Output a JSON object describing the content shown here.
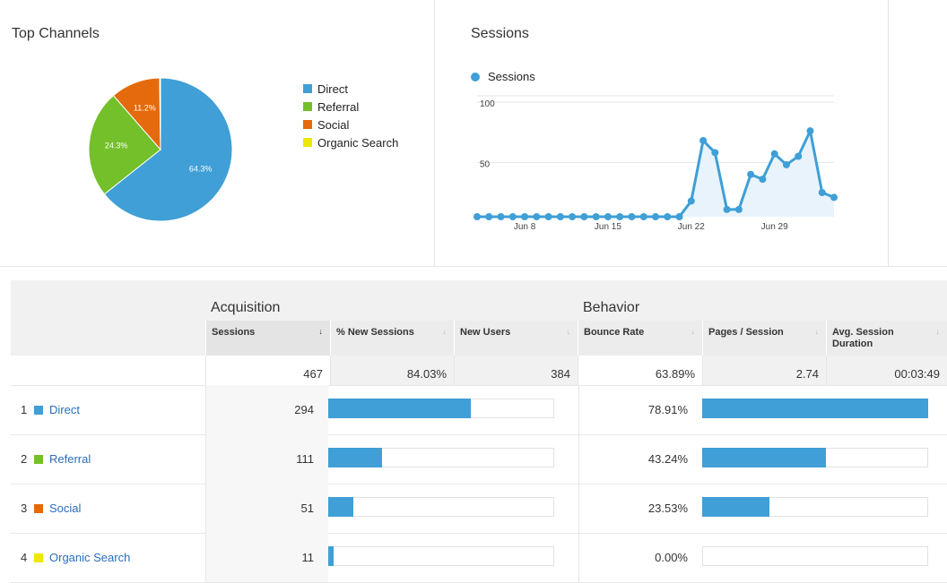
{
  "top_channels": {
    "title": "Top Channels",
    "legend": [
      {
        "label": "Direct",
        "color": "#3f9fd6"
      },
      {
        "label": "Referral",
        "color": "#73c02a"
      },
      {
        "label": "Social",
        "color": "#e46a0b"
      },
      {
        "label": "Organic Search",
        "color": "#ede800"
      }
    ],
    "chart_data": {
      "type": "pie",
      "slices": [
        {
          "label": "Direct",
          "value": 64.3,
          "display": "64.3%",
          "color": "#3f9fd6"
        },
        {
          "label": "Referral",
          "value": 24.3,
          "display": "24.3%",
          "color": "#73c02a"
        },
        {
          "label": "Social",
          "value": 11.2,
          "display": "11.2%",
          "color": "#e46a0b"
        },
        {
          "label": "Organic Search",
          "value": 0.2,
          "display": "",
          "color": "#ede800"
        }
      ]
    }
  },
  "sessions_panel": {
    "title": "Sessions",
    "legend_label": "Sessions",
    "legend_color": "#3f9fd6",
    "chart_data": {
      "type": "area",
      "series": [
        {
          "name": "Sessions",
          "values": [
            0,
            0,
            0,
            0,
            0,
            0,
            0,
            0,
            0,
            0,
            0,
            0,
            0,
            0,
            0,
            0,
            0,
            0,
            13,
            63,
            53,
            6,
            6,
            35,
            31,
            52,
            43,
            50,
            71,
            20,
            16
          ]
        }
      ],
      "x_tick_labels": [
        "Jun 8",
        "Jun 15",
        "Jun 22",
        "Jun 29"
      ],
      "x_tick_indices": [
        4,
        11,
        18,
        25
      ],
      "y_tick_labels": [
        "100",
        "50"
      ],
      "y_tick_values": [
        100,
        50
      ],
      "ylim": [
        0,
        100
      ],
      "grid": true
    }
  },
  "table": {
    "groups": {
      "acquisition": "Acquisition",
      "behavior": "Behavior"
    },
    "columns": {
      "sessions": "Sessions",
      "new_sessions": "% New Sessions",
      "new_users": "New Users",
      "bounce_rate": "Bounce Rate",
      "pages_session": "Pages / Session",
      "avg_duration": "Avg. Session Duration"
    },
    "sort_arrow": "↓",
    "totals": {
      "sessions": "467",
      "new_sessions": "84.03%",
      "new_users": "384",
      "bounce_rate": "63.89%",
      "pages_session": "2.74",
      "avg_duration": "00:03:49"
    },
    "rows": [
      {
        "rank": "1",
        "name": "Direct",
        "color": "#3f9fd6",
        "sessions": "294",
        "sessions_share": 0.6296,
        "bounce_rate": "78.91%",
        "bounce_share": 1.0
      },
      {
        "rank": "2",
        "name": "Referral",
        "color": "#73c02a",
        "sessions": "111",
        "sessions_share": 0.2377,
        "bounce_rate": "43.24%",
        "bounce_share": 0.548
      },
      {
        "rank": "3",
        "name": "Social",
        "color": "#e46a0b",
        "sessions": "51",
        "sessions_share": 0.1092,
        "bounce_rate": "23.53%",
        "bounce_share": 0.2982
      },
      {
        "rank": "4",
        "name": "Organic Search",
        "color": "#ede800",
        "sessions": "11",
        "sessions_share": 0.0236,
        "bounce_rate": "0.00%",
        "bounce_share": 0.0
      }
    ]
  }
}
